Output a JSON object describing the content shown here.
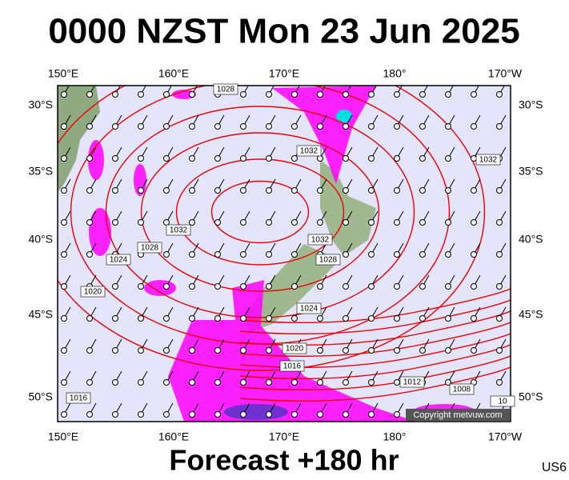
{
  "header": {
    "title": "0000 NZST Mon 23 Jun 2025"
  },
  "map": {
    "longitude_labels": [
      "150°E",
      "160°E",
      "170°E",
      "180°",
      "170°W"
    ],
    "latitude_labels": [
      "30°S",
      "35°S",
      "40°S",
      "45°S",
      "50°S"
    ],
    "isobar_labels": [
      "1028",
      "1032",
      "1032",
      "1032",
      "1028",
      "1024",
      "1020",
      "1032",
      "1028",
      "1024",
      "1020",
      "1016",
      "1016",
      "1012",
      "1008",
      "10"
    ],
    "copyright": "Copyright metvuw.com"
  },
  "footer": {
    "forecast": "Forecast +180 hr",
    "code": "US6"
  }
}
